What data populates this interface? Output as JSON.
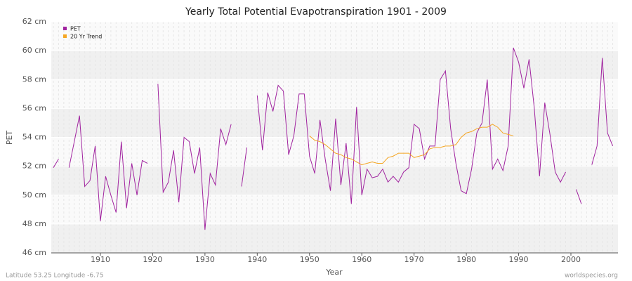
{
  "chart_data": {
    "type": "line",
    "title": "Yearly Total Potential Evapotranspiration 1901 - 2009",
    "xlabel": "Year",
    "ylabel": "PET",
    "footer_left": "Latitude 53.25 Longitude -6.75",
    "footer_right": "worldspecies.org",
    "x": [
      1901,
      1902,
      1903,
      1904,
      1905,
      1906,
      1907,
      1908,
      1909,
      1910,
      1911,
      1912,
      1913,
      1914,
      1915,
      1916,
      1917,
      1918,
      1919,
      1920,
      1921,
      1922,
      1923,
      1924,
      1925,
      1926,
      1927,
      1928,
      1929,
      1930,
      1931,
      1932,
      1933,
      1934,
      1935,
      1936,
      1937,
      1938,
      1939,
      1940,
      1941,
      1942,
      1943,
      1944,
      1945,
      1946,
      1947,
      1948,
      1949,
      1950,
      1951,
      1952,
      1953,
      1954,
      1955,
      1956,
      1957,
      1958,
      1959,
      1960,
      1961,
      1962,
      1963,
      1964,
      1965,
      1966,
      1967,
      1968,
      1969,
      1970,
      1971,
      1972,
      1973,
      1974,
      1975,
      1976,
      1977,
      1978,
      1979,
      1980,
      1981,
      1982,
      1983,
      1984,
      1985,
      1986,
      1987,
      1988,
      1989,
      1990,
      1991,
      1992,
      1993,
      1994,
      1995,
      1996,
      1997,
      1998,
      1999,
      2000,
      2001,
      2002,
      2003,
      2004,
      2005,
      2006,
      2007,
      2008
    ],
    "series": [
      {
        "name": "PET",
        "color": "#a0239f",
        "values": [
          51.9,
          52.5,
          null,
          51.9,
          53.7,
          55.5,
          50.6,
          51.0,
          53.4,
          48.2,
          51.3,
          50.0,
          48.8,
          53.7,
          49.1,
          52.2,
          50.0,
          52.4,
          52.2,
          null,
          57.7,
          50.2,
          50.9,
          53.1,
          49.5,
          54.0,
          53.7,
          51.5,
          53.3,
          47.6,
          51.5,
          50.7,
          54.6,
          53.5,
          54.9,
          null,
          50.6,
          53.3,
          null,
          56.9,
          53.1,
          57.1,
          55.8,
          57.6,
          57.2,
          52.8,
          54.1,
          57.0,
          57.0,
          52.7,
          51.5,
          55.2,
          52.5,
          50.3,
          55.3,
          50.7,
          53.6,
          49.4,
          56.1,
          50.0,
          51.8,
          51.2,
          51.3,
          51.8,
          50.9,
          51.3,
          50.9,
          51.6,
          51.9,
          54.9,
          54.6,
          52.5,
          53.4,
          53.4,
          58.0,
          58.6,
          54.6,
          52.2,
          50.3,
          50.1,
          51.8,
          54.3,
          55.0,
          58.0,
          51.8,
          52.5,
          51.7,
          53.4,
          60.2,
          59.2,
          57.4,
          59.4,
          56.0,
          51.3,
          56.4,
          54.2,
          51.6,
          50.9,
          51.6,
          null,
          50.4,
          49.4,
          null,
          52.1,
          53.4,
          59.5,
          54.3,
          53.4
        ]
      },
      {
        "name": "20 Yr Trend",
        "color": "#f5a623",
        "values": [
          null,
          null,
          null,
          null,
          null,
          null,
          null,
          null,
          null,
          null,
          null,
          null,
          null,
          null,
          null,
          null,
          null,
          null,
          null,
          null,
          null,
          null,
          null,
          null,
          null,
          null,
          null,
          null,
          null,
          null,
          null,
          null,
          null,
          null,
          null,
          null,
          null,
          null,
          null,
          null,
          null,
          null,
          null,
          null,
          null,
          null,
          null,
          null,
          null,
          54.1,
          53.8,
          53.7,
          53.5,
          53.2,
          52.9,
          52.8,
          52.6,
          52.5,
          52.3,
          52.1,
          52.2,
          52.3,
          52.2,
          52.2,
          52.6,
          52.7,
          52.9,
          52.9,
          52.9,
          52.6,
          52.7,
          52.8,
          53.2,
          53.3,
          53.3,
          53.4,
          53.4,
          53.5,
          54.0,
          54.3,
          54.4,
          54.6,
          54.7,
          54.7,
          54.9,
          54.7,
          54.3,
          54.2,
          54.1,
          null,
          null,
          null,
          null,
          null,
          null,
          null,
          null,
          null,
          null,
          null,
          null,
          null,
          null,
          null,
          null,
          null,
          null,
          null
        ]
      }
    ],
    "xlim": [
      1900.6,
      2009
    ],
    "xticks": [
      1910,
      1920,
      1930,
      1940,
      1950,
      1960,
      1970,
      1980,
      1990,
      2000
    ],
    "ylim": [
      46,
      62
    ],
    "yticks": [
      {
        "value": 46,
        "label": "46 cm"
      },
      {
        "value": 48,
        "label": "48 cm"
      },
      {
        "value": 50,
        "label": "50 cm"
      },
      {
        "value": 52,
        "label": "52 cm"
      },
      {
        "value": 54,
        "label": "54 cm"
      },
      {
        "value": 56,
        "label": "56 cm"
      },
      {
        "value": 58,
        "label": "58 cm"
      },
      {
        "value": 60,
        "label": "60 cm"
      },
      {
        "value": 62,
        "label": "62 cm"
      }
    ],
    "grid": true,
    "legend": "top-left"
  }
}
